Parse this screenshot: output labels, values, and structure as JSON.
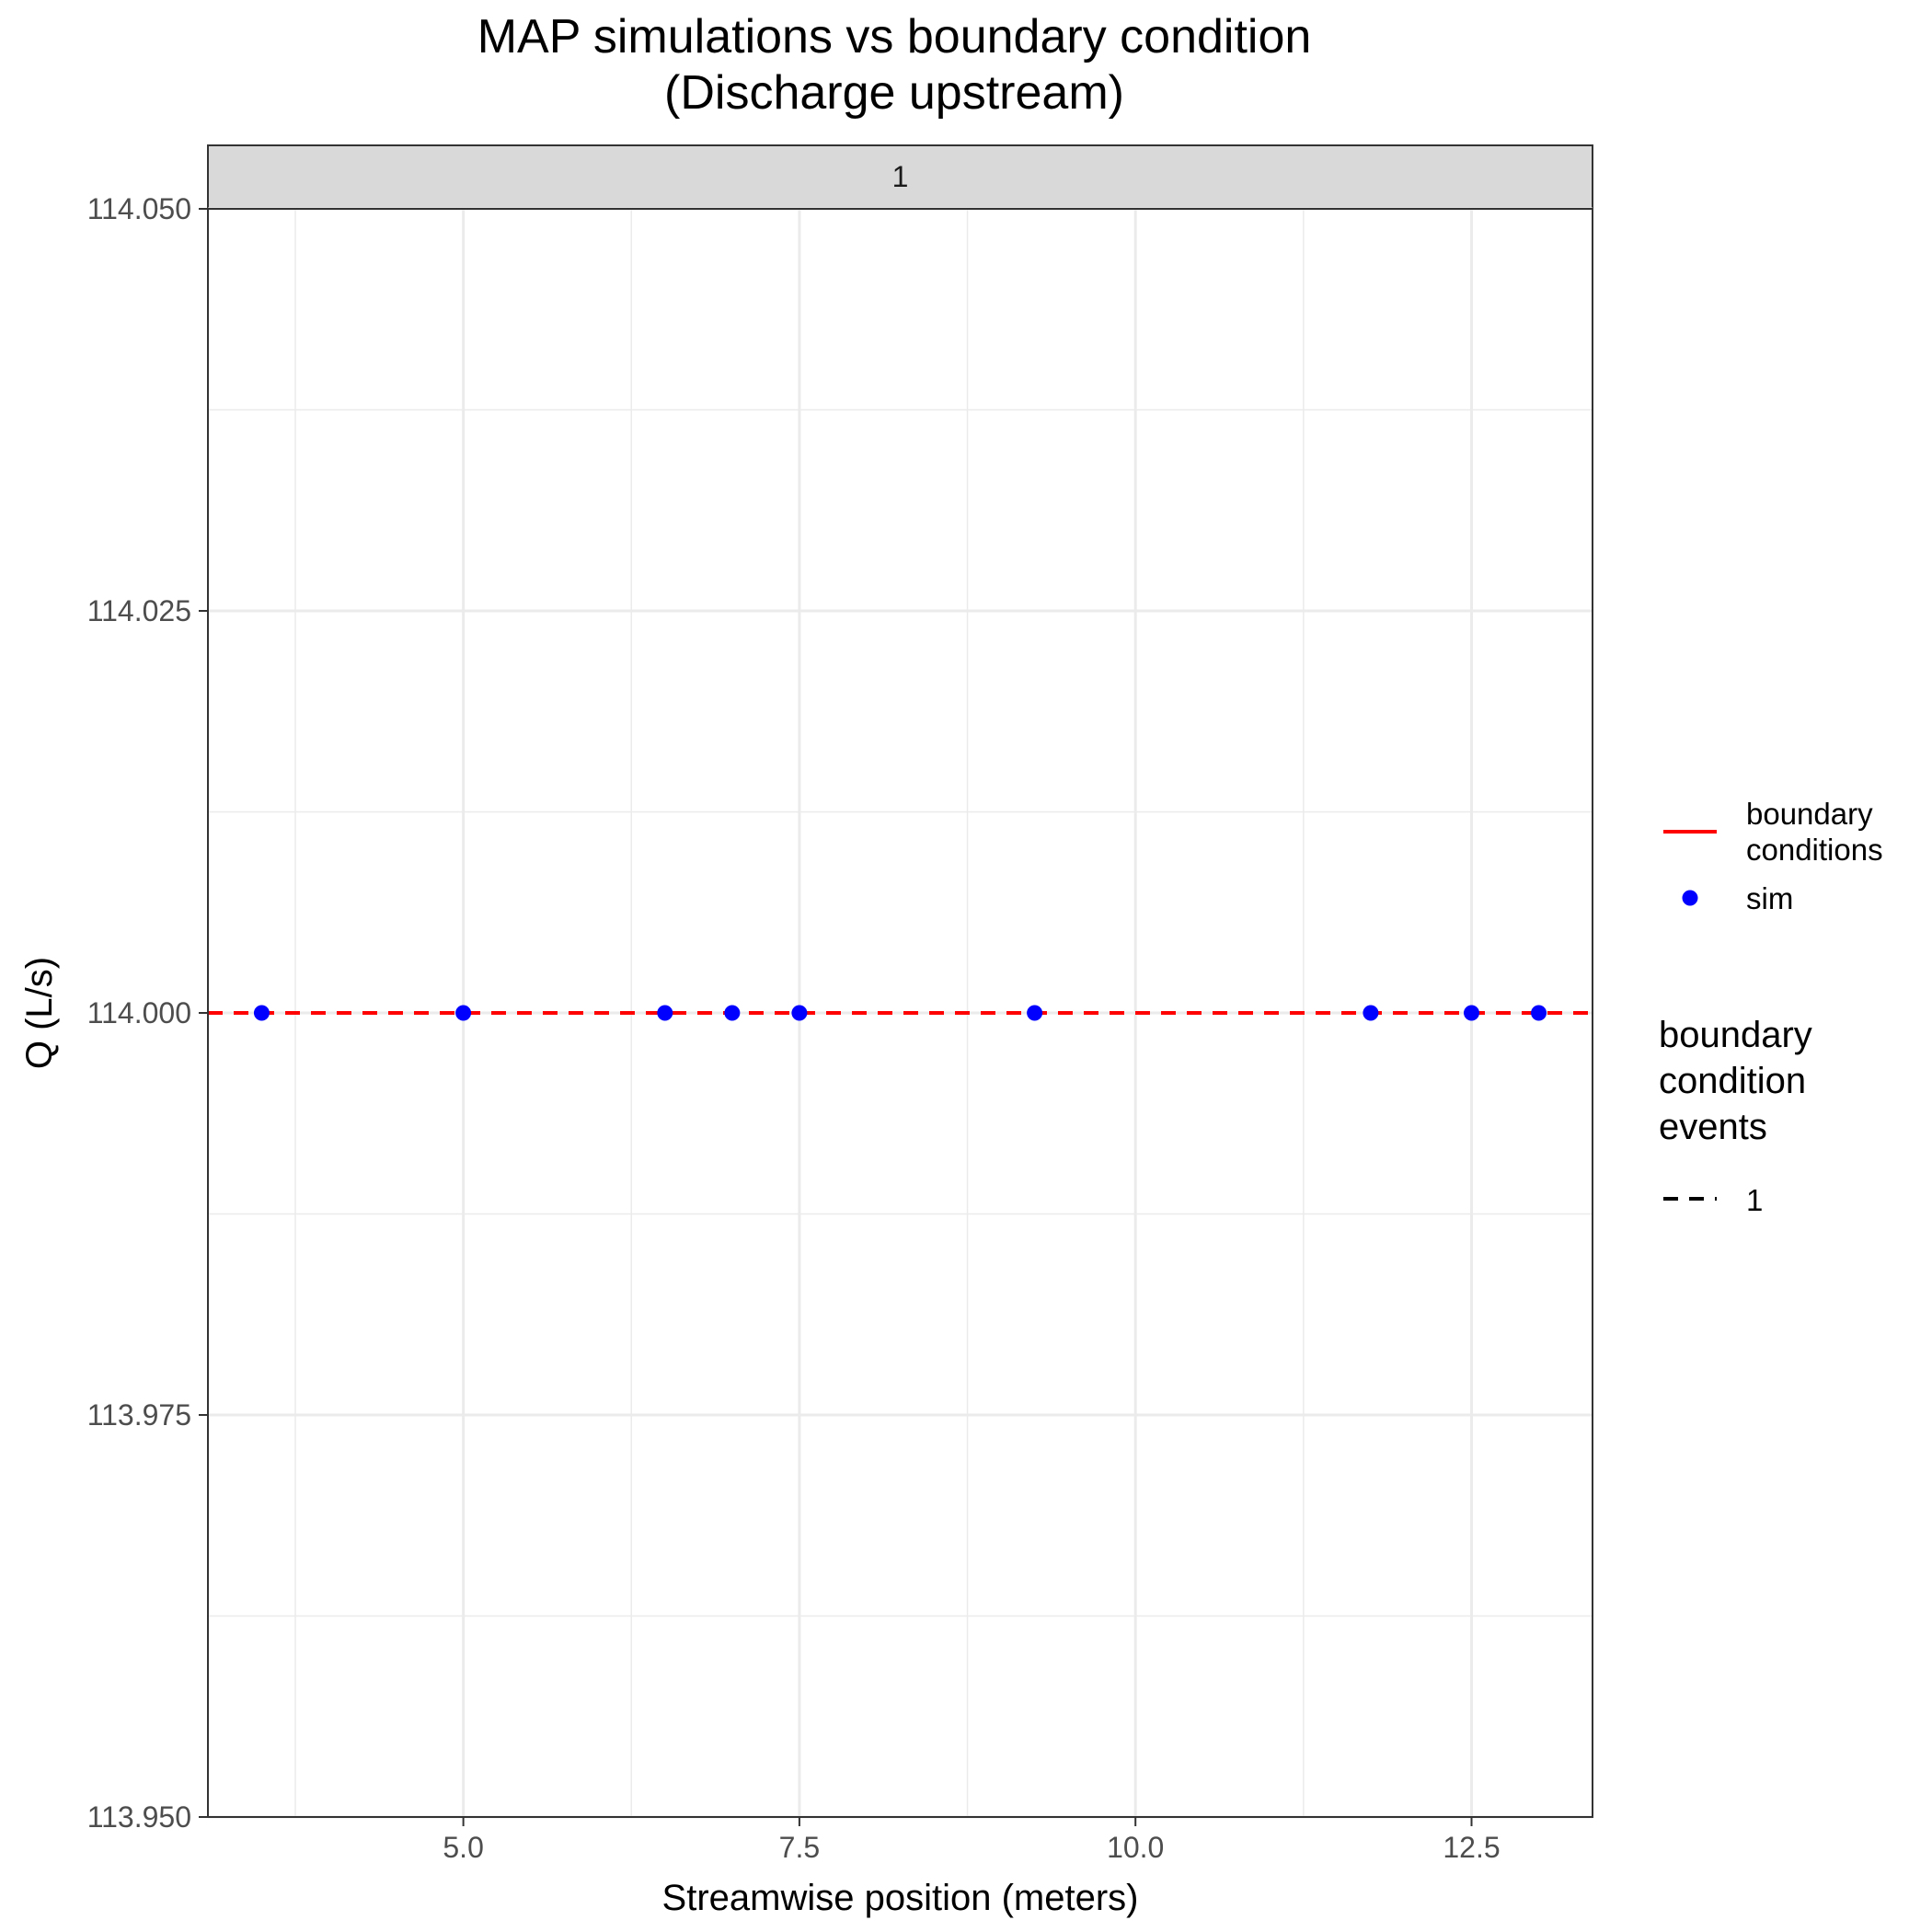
{
  "chart_data": {
    "type": "scatter",
    "title_lines": [
      "MAP simulations vs boundary condition",
      "(Discharge upstream)"
    ],
    "facet_label": "1",
    "xlabel": "Streamwise position (meters)",
    "ylabel": "Q (L/s)",
    "xlim": [
      3.1,
      13.4
    ],
    "ylim": [
      113.95,
      114.05
    ],
    "x_ticks": [
      5.0,
      7.5,
      10.0,
      12.5
    ],
    "x_tick_labels": [
      "5.0",
      "7.5",
      "10.0",
      "12.5"
    ],
    "y_ticks": [
      113.95,
      113.975,
      114.0,
      114.025,
      114.05
    ],
    "y_tick_labels": [
      "113.950",
      "113.975",
      "114.000",
      "114.025",
      "114.050"
    ],
    "grid": true,
    "series": [
      {
        "name": "sim",
        "kind": "points",
        "color": "#0000ff",
        "x": [
          3.5,
          5.0,
          6.5,
          7.0,
          7.5,
          9.25,
          11.75,
          12.5,
          13.0
        ],
        "y": [
          114.0,
          114.0,
          114.0,
          114.0,
          114.0,
          114.0,
          114.0,
          114.0,
          114.0
        ]
      },
      {
        "name": "boundary conditions",
        "kind": "hline-dashed",
        "color": "#ff0000",
        "y": 114.0,
        "event": "1"
      }
    ],
    "legend": {
      "placement": "right",
      "color_items": [
        {
          "lines": [
            "boundary",
            "conditions"
          ],
          "symbol": "line",
          "color": "#ff0000"
        },
        {
          "lines": [
            "sim"
          ],
          "symbol": "point",
          "color": "#0000ff"
        }
      ],
      "linetype_title_lines": [
        "boundary",
        "condition",
        "events"
      ],
      "linetype_items": [
        {
          "label": "1",
          "symbol": "dashed-line",
          "color": "#000000"
        }
      ]
    }
  }
}
